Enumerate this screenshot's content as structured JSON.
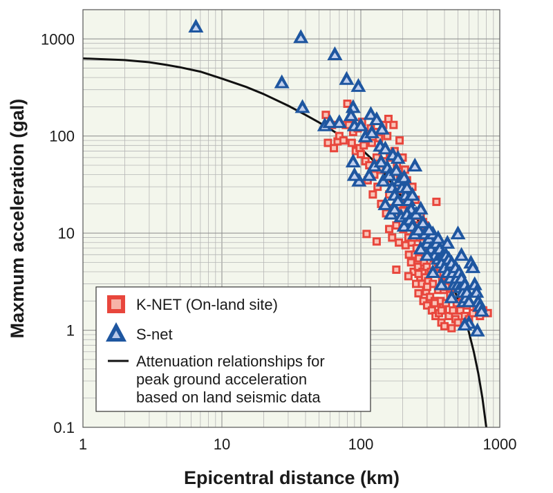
{
  "chart_data": {
    "type": "scatter",
    "title": "",
    "xlabel": "Epicentral distance (km)",
    "ylabel": "Maxmum acceleration (gal)",
    "xscale": "log",
    "yscale": "log",
    "xlim": [
      1,
      1000
    ],
    "ylim": [
      0.1,
      2000
    ],
    "grid": true,
    "background_color": "#f3f6ec",
    "legend_position": "bottom-left",
    "x_ticks": [
      {
        "value": 1,
        "label": "1"
      },
      {
        "value": 10,
        "label": "10"
      },
      {
        "value": 100,
        "label": "100"
      },
      {
        "value": 1000,
        "label": "1000"
      }
    ],
    "y_ticks": [
      {
        "value": 0.1,
        "label": "0.1"
      },
      {
        "value": 1,
        "label": "1"
      },
      {
        "value": 10,
        "label": "10"
      },
      {
        "value": 100,
        "label": "100"
      },
      {
        "value": 1000,
        "label": "1000"
      }
    ],
    "series": [
      {
        "name": "K-NET (On-land site)",
        "marker": "square",
        "color": "#e8463c",
        "points": [
          [
            56,
            165
          ],
          [
            58,
            85
          ],
          [
            62,
            130
          ],
          [
            64,
            75
          ],
          [
            68,
            88
          ],
          [
            70,
            100
          ],
          [
            75,
            90
          ],
          [
            78,
            130
          ],
          [
            80,
            215
          ],
          [
            82,
            130
          ],
          [
            86,
            85
          ],
          [
            88,
            110
          ],
          [
            92,
            70
          ],
          [
            95,
            120
          ],
          [
            98,
            75
          ],
          [
            100,
            65
          ],
          [
            102,
            140
          ],
          [
            105,
            80
          ],
          [
            108,
            55
          ],
          [
            110,
            9.8
          ],
          [
            112,
            35
          ],
          [
            115,
            50
          ],
          [
            118,
            120
          ],
          [
            120,
            85
          ],
          [
            122,
            25
          ],
          [
            125,
            40
          ],
          [
            128,
            110
          ],
          [
            130,
            60
          ],
          [
            132,
            30
          ],
          [
            135,
            95
          ],
          [
            138,
            45
          ],
          [
            140,
            20
          ],
          [
            142,
            75
          ],
          [
            145,
            130
          ],
          [
            148,
            55
          ],
          [
            150,
            35
          ],
          [
            152,
            16
          ],
          [
            155,
            100
          ],
          [
            158,
            150
          ],
          [
            160,
            25
          ],
          [
            162,
            60
          ],
          [
            165,
            40
          ],
          [
            168,
            9
          ],
          [
            170,
            18
          ],
          [
            172,
            130
          ],
          [
            175,
            70
          ],
          [
            178,
            30
          ],
          [
            180,
            12
          ],
          [
            182,
            50
          ],
          [
            185,
            22
          ],
          [
            188,
            8
          ],
          [
            190,
            90
          ],
          [
            192,
            40
          ],
          [
            195,
            15
          ],
          [
            198,
            28
          ],
          [
            200,
            60
          ],
          [
            202,
            11
          ],
          [
            205,
            20
          ],
          [
            208,
            45
          ],
          [
            210,
            7.5
          ],
          [
            212,
            14
          ],
          [
            215,
            35
          ],
          [
            218,
            25
          ],
          [
            220,
            9
          ],
          [
            222,
            6
          ],
          [
            225,
            18
          ],
          [
            228,
            12
          ],
          [
            230,
            5
          ],
          [
            232,
            8
          ],
          [
            235,
            30
          ],
          [
            238,
            15
          ],
          [
            240,
            4
          ],
          [
            242,
            10
          ],
          [
            245,
            6
          ],
          [
            248,
            22
          ],
          [
            250,
            3
          ],
          [
            252,
            7
          ],
          [
            255,
            12
          ],
          [
            258,
            4.5
          ],
          [
            260,
            2.4
          ],
          [
            262,
            5.5
          ],
          [
            265,
            9
          ],
          [
            268,
            3.5
          ],
          [
            270,
            15
          ],
          [
            272,
            6.5
          ],
          [
            275,
            3
          ],
          [
            278,
            4
          ],
          [
            280,
            8
          ],
          [
            282,
            2
          ],
          [
            285,
            5
          ],
          [
            288,
            12
          ],
          [
            290,
            3.5
          ],
          [
            292,
            6
          ],
          [
            295,
            2.5
          ],
          [
            298,
            4.5
          ],
          [
            300,
            1.8
          ],
          [
            305,
            3.2
          ],
          [
            310,
            7
          ],
          [
            315,
            2.2
          ],
          [
            320,
            4
          ],
          [
            325,
            1.6
          ],
          [
            330,
            3
          ],
          [
            335,
            5.5
          ],
          [
            340,
            2
          ],
          [
            345,
            1.4
          ],
          [
            350,
            21
          ],
          [
            355,
            3.8
          ],
          [
            360,
            2.6
          ],
          [
            365,
            1.5
          ],
          [
            370,
            4.5
          ],
          [
            375,
            2
          ],
          [
            380,
            1.2
          ],
          [
            385,
            3.2
          ],
          [
            390,
            1.7
          ],
          [
            395,
            2.6
          ],
          [
            400,
            1.1
          ],
          [
            410,
            1.9
          ],
          [
            420,
            3.5
          ],
          [
            430,
            1.4
          ],
          [
            440,
            2.3
          ],
          [
            450,
            1.05
          ],
          [
            460,
            1.6
          ],
          [
            470,
            2.8
          ],
          [
            480,
            1.3
          ],
          [
            490,
            1.9
          ],
          [
            500,
            1.2
          ],
          [
            520,
            1.6
          ],
          [
            540,
            2.2
          ],
          [
            560,
            1.4
          ],
          [
            580,
            1.8
          ],
          [
            600,
            1.3
          ],
          [
            640,
            1.5
          ],
          [
            680,
            1.7
          ],
          [
            720,
            1.4
          ],
          [
            760,
            1.6
          ],
          [
            820,
            1.5
          ],
          [
            130,
            8.2
          ],
          [
            160,
            11
          ],
          [
            200,
            17
          ],
          [
            240,
            9
          ],
          [
            280,
            13
          ],
          [
            320,
            6.5
          ],
          [
            360,
            5
          ],
          [
            410,
            2.8
          ],
          [
            180,
            4.2
          ],
          [
            220,
            3.6
          ],
          [
            260,
            3.8
          ],
          [
            300,
            2.8
          ],
          [
            340,
            1.9
          ],
          [
            380,
            1.6
          ]
        ]
      },
      {
        "name": "S-net",
        "marker": "triangle",
        "color": "#1e56a0",
        "points": [
          [
            6.5,
            1350
          ],
          [
            37,
            1050
          ],
          [
            65,
            700
          ],
          [
            27,
            360
          ],
          [
            79,
            390
          ],
          [
            96,
            330
          ],
          [
            38,
            200
          ],
          [
            88,
            200
          ],
          [
            55,
            130
          ],
          [
            60,
            140
          ],
          [
            70,
            140
          ],
          [
            90,
            130
          ],
          [
            85,
            165
          ],
          [
            100,
            130
          ],
          [
            118,
            170
          ],
          [
            130,
            150
          ],
          [
            142,
            120
          ],
          [
            108,
            100
          ],
          [
            120,
            110
          ],
          [
            138,
            80
          ],
          [
            150,
            75
          ],
          [
            170,
            65
          ],
          [
            185,
            60
          ],
          [
            88,
            55
          ],
          [
            97,
            35
          ],
          [
            90,
            40
          ],
          [
            115,
            40
          ],
          [
            125,
            50
          ],
          [
            140,
            55
          ],
          [
            145,
            35
          ],
          [
            155,
            48
          ],
          [
            160,
            40
          ],
          [
            168,
            30
          ],
          [
            175,
            25
          ],
          [
            180,
            45
          ],
          [
            190,
            35
          ],
          [
            198,
            30
          ],
          [
            205,
            38
          ],
          [
            210,
            25
          ],
          [
            215,
            30
          ],
          [
            220,
            22
          ],
          [
            230,
            18
          ],
          [
            235,
            25
          ],
          [
            245,
            50
          ],
          [
            150,
            20
          ],
          [
            165,
            16
          ],
          [
            175,
            18
          ],
          [
            185,
            22
          ],
          [
            195,
            15
          ],
          [
            205,
            12
          ],
          [
            215,
            16
          ],
          [
            225,
            14
          ],
          [
            235,
            12
          ],
          [
            245,
            10
          ],
          [
            250,
            16
          ],
          [
            260,
            11
          ],
          [
            270,
            18
          ],
          [
            280,
            13
          ],
          [
            290,
            10
          ],
          [
            300,
            8
          ],
          [
            310,
            9
          ],
          [
            320,
            7
          ],
          [
            330,
            10
          ],
          [
            340,
            6
          ],
          [
            350,
            8
          ],
          [
            360,
            5.5
          ],
          [
            370,
            7
          ],
          [
            380,
            5
          ],
          [
            390,
            6
          ],
          [
            400,
            4.5
          ],
          [
            410,
            6
          ],
          [
            420,
            4
          ],
          [
            430,
            5.5
          ],
          [
            440,
            3.5
          ],
          [
            450,
            5
          ],
          [
            460,
            4
          ],
          [
            470,
            3
          ],
          [
            480,
            4.5
          ],
          [
            490,
            3.5
          ],
          [
            500,
            3
          ],
          [
            510,
            4
          ],
          [
            520,
            2.8
          ],
          [
            530,
            3.5
          ],
          [
            540,
            2.5
          ],
          [
            550,
            2
          ],
          [
            560,
            3
          ],
          [
            570,
            2.2
          ],
          [
            580,
            2.5
          ],
          [
            600,
            2
          ],
          [
            620,
            5
          ],
          [
            640,
            4.5
          ],
          [
            660,
            3
          ],
          [
            680,
            2.5
          ],
          [
            700,
            2
          ],
          [
            720,
            1.8
          ],
          [
            740,
            1.6
          ],
          [
            690,
            1
          ],
          [
            600,
            1.2
          ],
          [
            560,
            1.15
          ],
          [
            450,
            2.2
          ],
          [
            380,
            3
          ],
          [
            330,
            4
          ],
          [
            300,
            6
          ],
          [
            270,
            7
          ],
          [
            310,
            11
          ],
          [
            360,
            9
          ],
          [
            420,
            8
          ],
          [
            500,
            10
          ],
          [
            530,
            6
          ]
        ]
      },
      {
        "name": "Attenuation relationships for peak ground acceleration based  on land seismic data",
        "marker": "line",
        "color": "#111111",
        "points": [
          [
            1,
            630
          ],
          [
            2,
            605
          ],
          [
            3,
            575
          ],
          [
            4,
            540
          ],
          [
            5,
            510
          ],
          [
            7,
            460
          ],
          [
            10,
            390
          ],
          [
            15,
            320
          ],
          [
            20,
            270
          ],
          [
            30,
            205
          ],
          [
            40,
            165
          ],
          [
            50,
            138
          ],
          [
            60,
            118
          ],
          [
            70,
            103
          ],
          [
            80,
            92
          ],
          [
            100,
            74
          ],
          [
            120,
            58
          ],
          [
            150,
            40
          ],
          [
            200,
            23
          ],
          [
            250,
            14.5
          ],
          [
            300,
            9.5
          ],
          [
            350,
            6.4
          ],
          [
            400,
            4.4
          ],
          [
            450,
            3.05
          ],
          [
            500,
            2.1
          ],
          [
            550,
            1.45
          ],
          [
            600,
            0.95
          ],
          [
            650,
            0.6
          ],
          [
            700,
            0.36
          ],
          [
            750,
            0.2
          ],
          [
            800,
            0.1
          ]
        ]
      }
    ],
    "legend": {
      "items": [
        {
          "label_lines": [
            "K-NET (On-land site)"
          ]
        },
        {
          "label_lines": [
            "S-net"
          ]
        },
        {
          "label_lines": [
            "Attenuation relationships for",
            "peak ground acceleration",
            "based  on land seismic data"
          ]
        }
      ]
    }
  }
}
